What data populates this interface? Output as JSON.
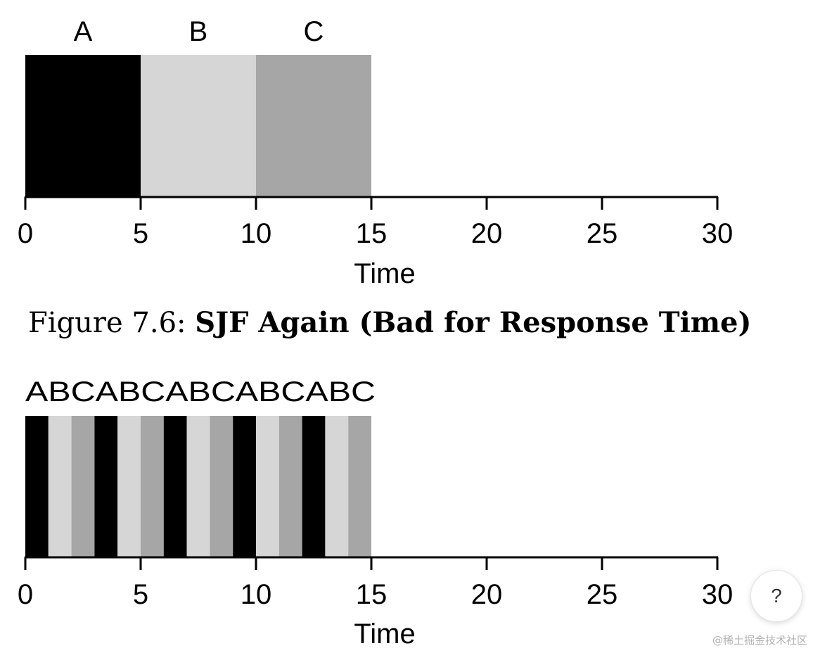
{
  "chart_data": [
    {
      "type": "gantt",
      "job_labels": [
        "A",
        "B",
        "C"
      ],
      "segments": [
        {
          "job": "A",
          "start": 0,
          "end": 5
        },
        {
          "job": "B",
          "start": 5,
          "end": 10
        },
        {
          "job": "C",
          "start": 10,
          "end": 15
        }
      ],
      "xlim": [
        0,
        30
      ],
      "xticks": [
        0,
        5,
        10,
        15,
        20,
        25,
        30
      ],
      "xlabel": "Time"
    },
    {
      "type": "gantt",
      "sequence_label": "ABCABCABCABCABC",
      "segments": [
        {
          "job": "A",
          "start": 0,
          "end": 1
        },
        {
          "job": "B",
          "start": 1,
          "end": 2
        },
        {
          "job": "C",
          "start": 2,
          "end": 3
        },
        {
          "job": "A",
          "start": 3,
          "end": 4
        },
        {
          "job": "B",
          "start": 4,
          "end": 5
        },
        {
          "job": "C",
          "start": 5,
          "end": 6
        },
        {
          "job": "A",
          "start": 6,
          "end": 7
        },
        {
          "job": "B",
          "start": 7,
          "end": 8
        },
        {
          "job": "C",
          "start": 8,
          "end": 9
        },
        {
          "job": "A",
          "start": 9,
          "end": 10
        },
        {
          "job": "B",
          "start": 10,
          "end": 11
        },
        {
          "job": "C",
          "start": 11,
          "end": 12
        },
        {
          "job": "A",
          "start": 12,
          "end": 13
        },
        {
          "job": "B",
          "start": 13,
          "end": 14
        },
        {
          "job": "C",
          "start": 14,
          "end": 15
        }
      ],
      "xlim": [
        0,
        30
      ],
      "xticks": [
        0,
        5,
        10,
        15,
        20,
        25,
        30
      ],
      "xlabel": "Time"
    }
  ],
  "colors": {
    "A": "#000000",
    "B": "#d6d6d6",
    "C": "#a6a6a6"
  },
  "caption": {
    "prefix": "Figure 7.6: ",
    "bold": "SJF Again (Bad for Response Time)"
  },
  "help_button": {
    "label": "?"
  },
  "watermark": "@稀土掘金技术社区"
}
